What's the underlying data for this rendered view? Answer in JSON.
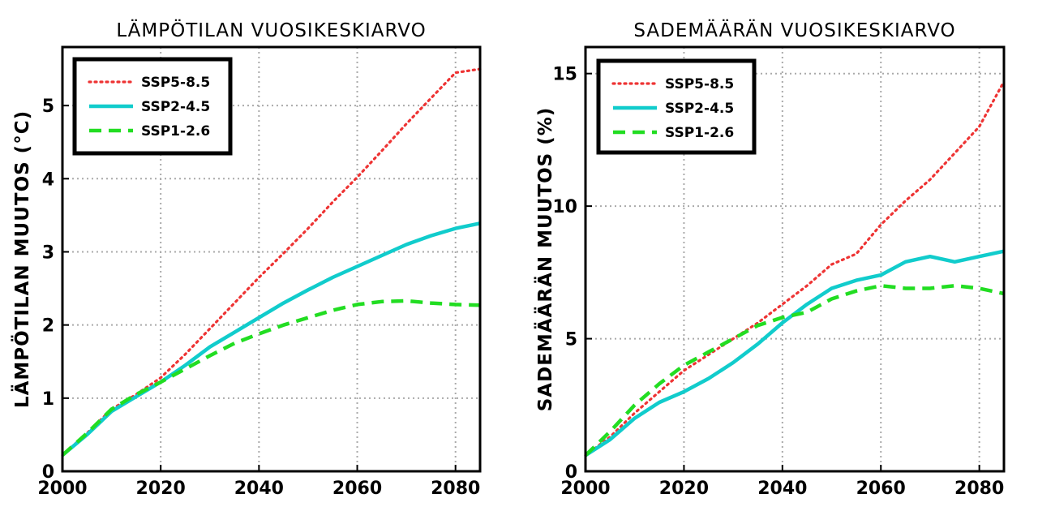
{
  "chart_data": [
    {
      "type": "line",
      "title": "LÄMPÖTILAN VUOSIKESKIARVO",
      "xlabel": "",
      "ylabel": "LÄMPÖTILAN MUUTOS (°C)",
      "xlim": [
        2000,
        2085
      ],
      "ylim": [
        0,
        5.8
      ],
      "xticks": [
        2000,
        2020,
        2040,
        2060,
        2080
      ],
      "yticks": [
        0,
        1,
        2,
        3,
        4,
        5
      ],
      "grid": true,
      "legend": "top-left",
      "series": [
        {
          "name": "SSP5-8.5",
          "style": "dotted",
          "color": "#ee3333",
          "x": [
            2000,
            2005,
            2010,
            2015,
            2020,
            2025,
            2030,
            2035,
            2040,
            2045,
            2050,
            2055,
            2060,
            2065,
            2070,
            2075,
            2080,
            2085
          ],
          "y": [
            0.22,
            0.52,
            0.85,
            1.05,
            1.28,
            1.6,
            1.95,
            2.3,
            2.65,
            2.98,
            3.32,
            3.68,
            4.02,
            4.38,
            4.75,
            5.1,
            5.45,
            5.5
          ]
        },
        {
          "name": "SSP2-4.5",
          "style": "solid",
          "color": "#11cccc",
          "x": [
            2000,
            2005,
            2010,
            2015,
            2020,
            2025,
            2030,
            2035,
            2040,
            2045,
            2050,
            2055,
            2060,
            2065,
            2070,
            2075,
            2080,
            2085
          ],
          "y": [
            0.22,
            0.5,
            0.82,
            1.02,
            1.22,
            1.45,
            1.7,
            1.9,
            2.1,
            2.3,
            2.48,
            2.65,
            2.8,
            2.95,
            3.1,
            3.22,
            3.32,
            3.39
          ]
        },
        {
          "name": "SSP1-2.6",
          "style": "dashed",
          "color": "#22dd22",
          "x": [
            2000,
            2005,
            2010,
            2015,
            2020,
            2025,
            2030,
            2035,
            2040,
            2045,
            2050,
            2055,
            2060,
            2065,
            2070,
            2075,
            2080,
            2085
          ],
          "y": [
            0.22,
            0.52,
            0.85,
            1.05,
            1.22,
            1.4,
            1.58,
            1.75,
            1.88,
            2.0,
            2.1,
            2.2,
            2.28,
            2.32,
            2.33,
            2.3,
            2.28,
            2.27
          ]
        }
      ]
    },
    {
      "type": "line",
      "title": "SADEMÄÄRÄN VUOSIKESKIARVO",
      "xlabel": "",
      "ylabel": "SADEMÄÄRÄN MUUTOS (%)",
      "xlim": [
        2000,
        2085
      ],
      "ylim": [
        0,
        16
      ],
      "xticks": [
        2000,
        2020,
        2040,
        2060,
        2080
      ],
      "yticks": [
        0,
        5,
        10,
        15
      ],
      "grid": true,
      "legend": "top-left",
      "series": [
        {
          "name": "SSP5-8.5",
          "style": "dotted",
          "color": "#ee3333",
          "x": [
            2000,
            2005,
            2010,
            2015,
            2020,
            2025,
            2030,
            2035,
            2040,
            2045,
            2050,
            2055,
            2060,
            2065,
            2070,
            2075,
            2080,
            2085
          ],
          "y": [
            0.6,
            1.3,
            2.2,
            3.0,
            3.8,
            4.4,
            5.0,
            5.6,
            6.3,
            7.0,
            7.8,
            8.2,
            9.3,
            10.2,
            11.0,
            12.0,
            13.0,
            14.7
          ]
        },
        {
          "name": "SSP2-4.5",
          "style": "solid",
          "color": "#11cccc",
          "x": [
            2000,
            2005,
            2010,
            2015,
            2020,
            2025,
            2030,
            2035,
            2040,
            2045,
            2050,
            2055,
            2060,
            2065,
            2070,
            2075,
            2080,
            2085
          ],
          "y": [
            0.6,
            1.2,
            2.0,
            2.6,
            3.0,
            3.5,
            4.1,
            4.8,
            5.6,
            6.3,
            6.9,
            7.2,
            7.4,
            7.9,
            8.1,
            7.9,
            8.1,
            8.3
          ]
        },
        {
          "name": "SSP1-2.6",
          "style": "dashed",
          "color": "#22dd22",
          "x": [
            2000,
            2005,
            2010,
            2015,
            2020,
            2025,
            2030,
            2035,
            2040,
            2045,
            2050,
            2055,
            2060,
            2065,
            2070,
            2075,
            2080,
            2085
          ],
          "y": [
            0.6,
            1.5,
            2.5,
            3.3,
            4.0,
            4.5,
            5.0,
            5.5,
            5.8,
            6.0,
            6.5,
            6.8,
            7.0,
            6.9,
            6.9,
            7.0,
            6.9,
            6.7
          ]
        }
      ]
    }
  ]
}
